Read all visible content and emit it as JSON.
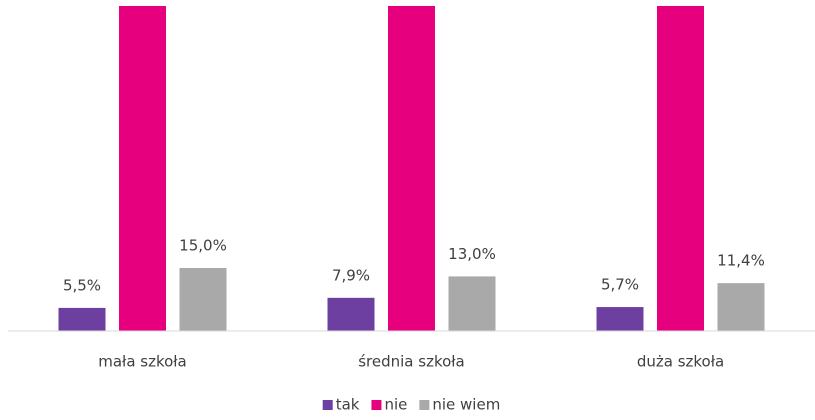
{
  "chart_data": {
    "type": "bar",
    "categories": [
      "mała szkoła",
      "średnia szkoła",
      "duża szkoła"
    ],
    "series": [
      {
        "name": "tak",
        "color": "#6c3fa0",
        "values": [
          5.5,
          7.9,
          5.7
        ],
        "value_labels": [
          "5,5%",
          "7,9%",
          "5,7%"
        ]
      },
      {
        "name": "nie",
        "color": "#e6007e",
        "values": [
          79.5,
          79.1,
          82.9
        ]
      },
      {
        "name": "nie wiem",
        "color": "#a9a9a9",
        "values": [
          15.0,
          13.0,
          11.4
        ],
        "value_labels": [
          "15,0%",
          "13,0%",
          "11,4%"
        ]
      }
    ],
    "ylim": [
      0,
      77.4
    ],
    "legend": "bottom"
  }
}
